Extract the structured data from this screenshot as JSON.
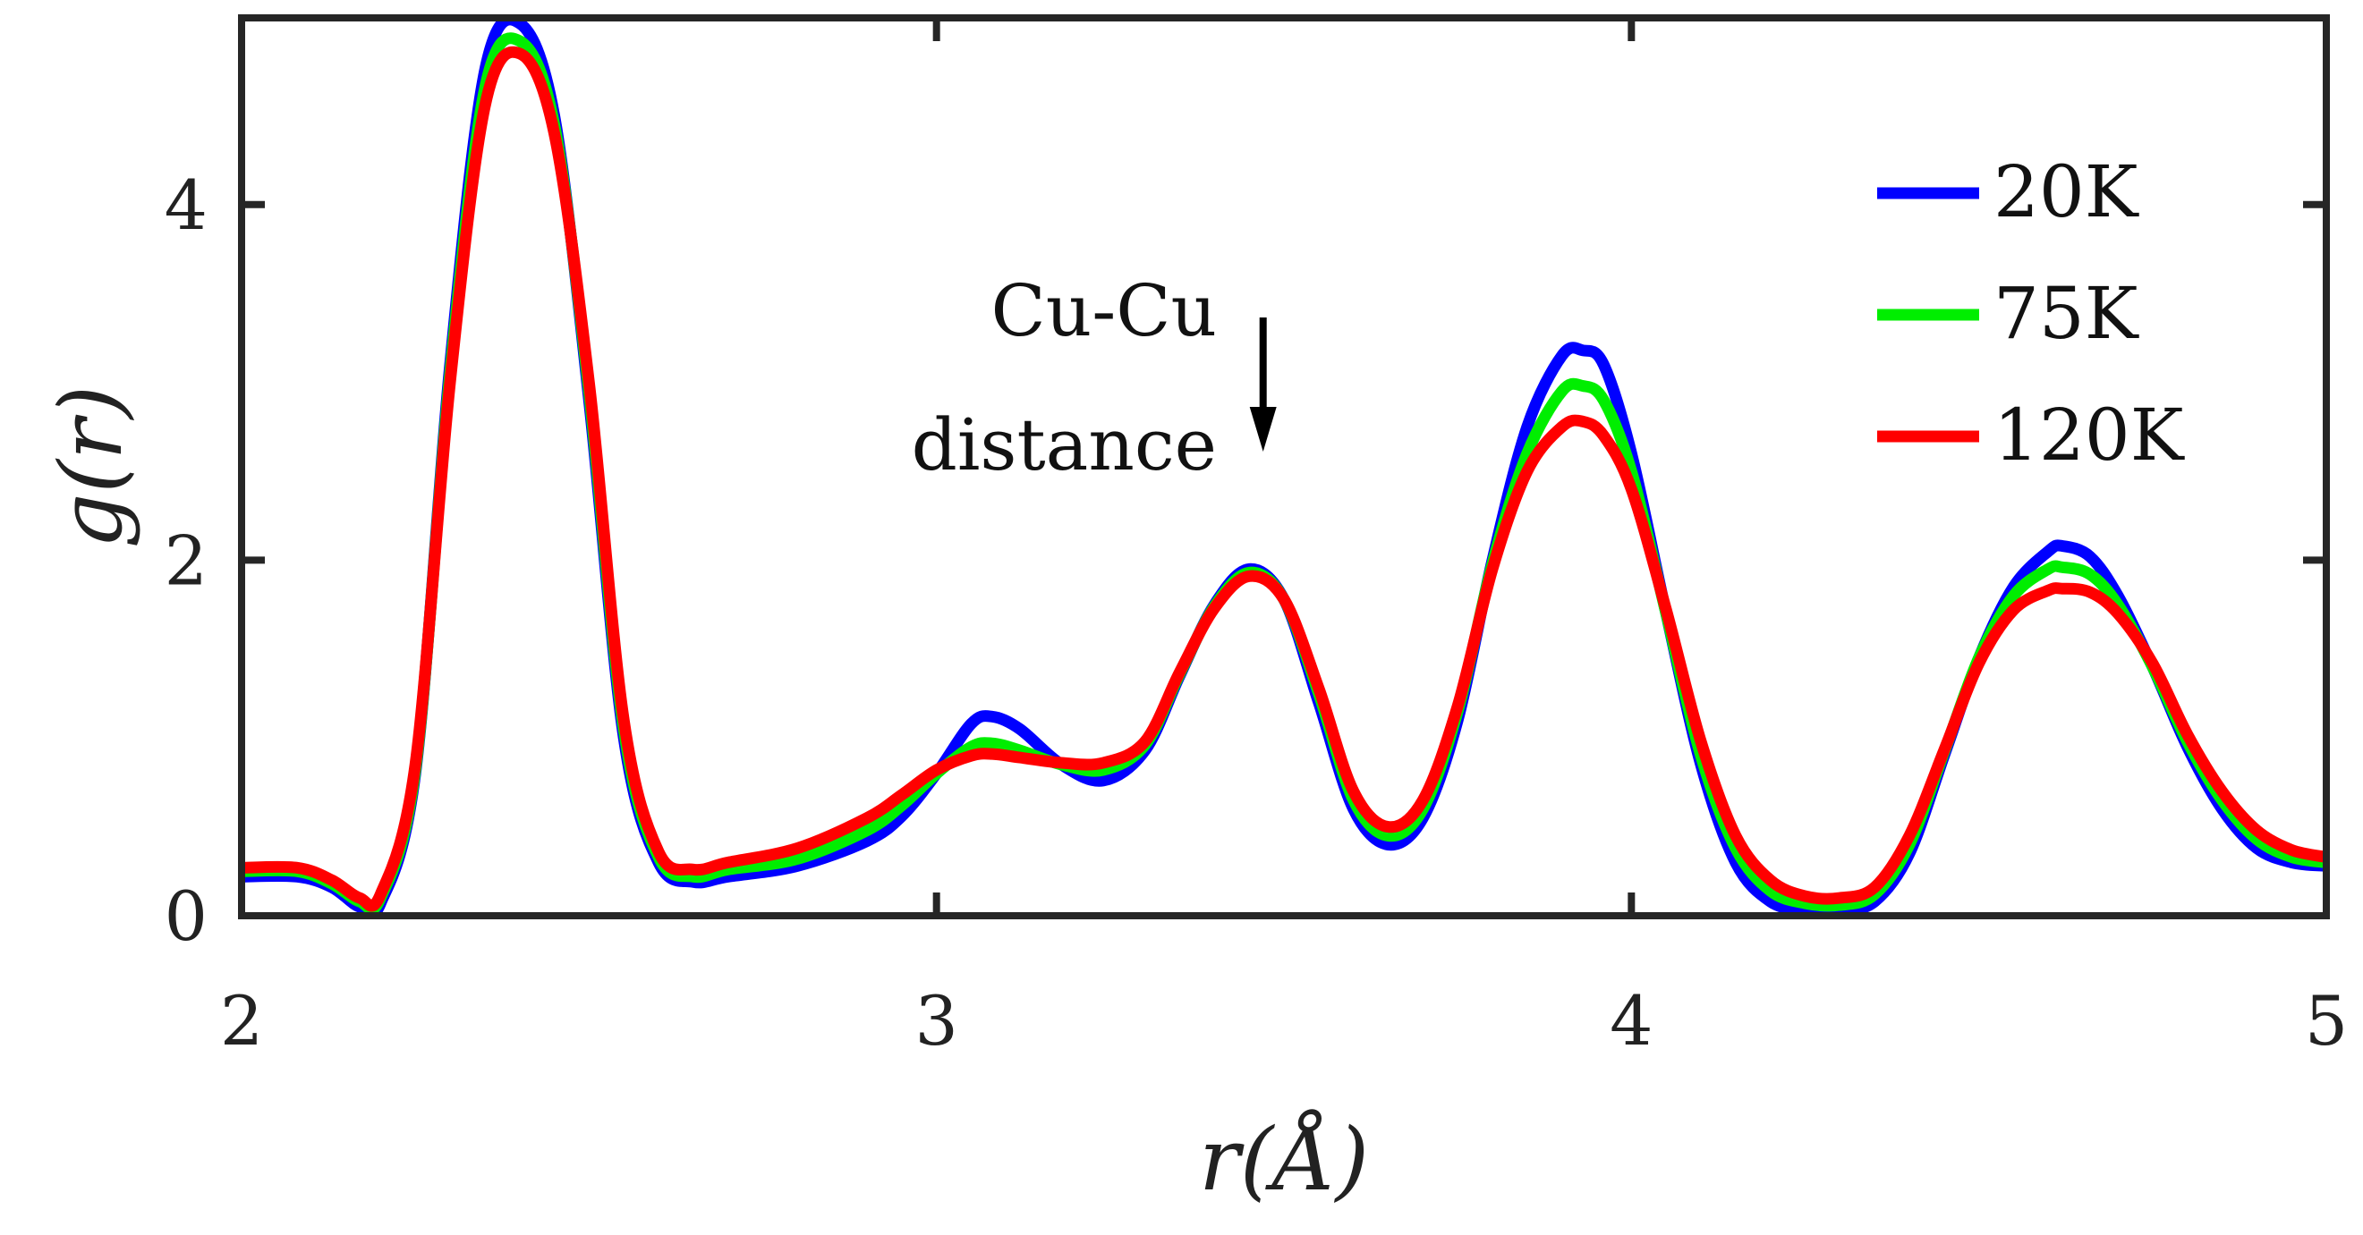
{
  "chart_data": {
    "type": "line",
    "title": "",
    "xlabel": "r(Å)",
    "ylabel": "g(r)",
    "xlim": [
      2,
      5
    ],
    "ylim": [
      0,
      5.05
    ],
    "xticks": [
      "2",
      "3",
      "4",
      "5"
    ],
    "yticks": [
      "0",
      "2",
      "4"
    ],
    "grid": false,
    "legend_position": "top-right",
    "annotation": {
      "line1": "Cu-Cu",
      "line2": "distance",
      "arrow_x": 3.47
    },
    "series": [
      {
        "name": "20K",
        "color": "#0000ff",
        "points": [
          [
            2.0,
            0.22
          ],
          [
            2.08,
            0.22
          ],
          [
            2.13,
            0.16
          ],
          [
            2.17,
            0.05
          ],
          [
            2.2,
            0.07
          ],
          [
            2.25,
            0.8
          ],
          [
            2.3,
            3.1
          ],
          [
            2.35,
            4.75
          ],
          [
            2.4,
            5.02
          ],
          [
            2.45,
            4.5
          ],
          [
            2.5,
            2.9
          ],
          [
            2.55,
            1.0
          ],
          [
            2.6,
            0.3
          ],
          [
            2.65,
            0.19
          ],
          [
            2.7,
            0.22
          ],
          [
            2.8,
            0.28
          ],
          [
            2.9,
            0.42
          ],
          [
            2.95,
            0.56
          ],
          [
            3.0,
            0.8
          ],
          [
            3.05,
            1.08
          ],
          [
            3.08,
            1.12
          ],
          [
            3.12,
            1.05
          ],
          [
            3.18,
            0.85
          ],
          [
            3.24,
            0.76
          ],
          [
            3.3,
            0.93
          ],
          [
            3.35,
            1.35
          ],
          [
            3.4,
            1.75
          ],
          [
            3.45,
            1.95
          ],
          [
            3.5,
            1.78
          ],
          [
            3.55,
            1.2
          ],
          [
            3.6,
            0.6
          ],
          [
            3.65,
            0.4
          ],
          [
            3.7,
            0.55
          ],
          [
            3.75,
            1.1
          ],
          [
            3.8,
            2.0
          ],
          [
            3.85,
            2.75
          ],
          [
            3.9,
            3.15
          ],
          [
            3.93,
            3.18
          ],
          [
            3.96,
            3.1
          ],
          [
            4.0,
            2.6
          ],
          [
            4.05,
            1.7
          ],
          [
            4.1,
            0.85
          ],
          [
            4.15,
            0.3
          ],
          [
            4.2,
            0.08
          ],
          [
            4.25,
            0.03
          ],
          [
            4.3,
            0.03
          ],
          [
            4.35,
            0.08
          ],
          [
            4.4,
            0.35
          ],
          [
            4.45,
            0.9
          ],
          [
            4.5,
            1.45
          ],
          [
            4.55,
            1.85
          ],
          [
            4.6,
            2.05
          ],
          [
            4.62,
            2.08
          ],
          [
            4.66,
            2.02
          ],
          [
            4.7,
            1.8
          ],
          [
            4.75,
            1.4
          ],
          [
            4.8,
            0.95
          ],
          [
            4.85,
            0.6
          ],
          [
            4.9,
            0.38
          ],
          [
            4.95,
            0.3
          ],
          [
            5.0,
            0.28
          ]
        ]
      },
      {
        "name": "75K",
        "color": "#00ee00",
        "points": [
          [
            2.0,
            0.25
          ],
          [
            2.08,
            0.25
          ],
          [
            2.13,
            0.18
          ],
          [
            2.17,
            0.08
          ],
          [
            2.2,
            0.1
          ],
          [
            2.25,
            0.82
          ],
          [
            2.3,
            3.05
          ],
          [
            2.35,
            4.65
          ],
          [
            2.4,
            4.92
          ],
          [
            2.45,
            4.45
          ],
          [
            2.5,
            2.95
          ],
          [
            2.55,
            1.05
          ],
          [
            2.6,
            0.33
          ],
          [
            2.65,
            0.22
          ],
          [
            2.7,
            0.26
          ],
          [
            2.8,
            0.32
          ],
          [
            2.9,
            0.48
          ],
          [
            2.95,
            0.62
          ],
          [
            3.0,
            0.8
          ],
          [
            3.05,
            0.95
          ],
          [
            3.08,
            0.97
          ],
          [
            3.12,
            0.93
          ],
          [
            3.18,
            0.85
          ],
          [
            3.24,
            0.82
          ],
          [
            3.3,
            0.96
          ],
          [
            3.35,
            1.36
          ],
          [
            3.4,
            1.74
          ],
          [
            3.45,
            1.93
          ],
          [
            3.5,
            1.78
          ],
          [
            3.55,
            1.25
          ],
          [
            3.6,
            0.65
          ],
          [
            3.65,
            0.45
          ],
          [
            3.7,
            0.6
          ],
          [
            3.75,
            1.15
          ],
          [
            3.8,
            1.98
          ],
          [
            3.85,
            2.6
          ],
          [
            3.9,
            2.95
          ],
          [
            3.93,
            2.98
          ],
          [
            3.96,
            2.9
          ],
          [
            4.0,
            2.5
          ],
          [
            4.05,
            1.7
          ],
          [
            4.1,
            0.9
          ],
          [
            4.15,
            0.38
          ],
          [
            4.2,
            0.14
          ],
          [
            4.25,
            0.07
          ],
          [
            4.3,
            0.06
          ],
          [
            4.35,
            0.12
          ],
          [
            4.4,
            0.4
          ],
          [
            4.45,
            0.92
          ],
          [
            4.5,
            1.45
          ],
          [
            4.55,
            1.8
          ],
          [
            4.6,
            1.95
          ],
          [
            4.62,
            1.96
          ],
          [
            4.66,
            1.92
          ],
          [
            4.7,
            1.75
          ],
          [
            4.75,
            1.4
          ],
          [
            4.8,
            0.98
          ],
          [
            4.85,
            0.65
          ],
          [
            4.9,
            0.43
          ],
          [
            4.95,
            0.33
          ],
          [
            5.0,
            0.3
          ]
        ]
      },
      {
        "name": "120K",
        "color": "#ff0000",
        "points": [
          [
            2.0,
            0.27
          ],
          [
            2.08,
            0.27
          ],
          [
            2.13,
            0.2
          ],
          [
            2.17,
            0.1
          ],
          [
            2.2,
            0.12
          ],
          [
            2.25,
            0.85
          ],
          [
            2.3,
            3.0
          ],
          [
            2.35,
            4.55
          ],
          [
            2.4,
            4.85
          ],
          [
            2.45,
            4.4
          ],
          [
            2.5,
            3.0
          ],
          [
            2.55,
            1.1
          ],
          [
            2.6,
            0.36
          ],
          [
            2.65,
            0.26
          ],
          [
            2.7,
            0.3
          ],
          [
            2.8,
            0.38
          ],
          [
            2.9,
            0.55
          ],
          [
            2.95,
            0.68
          ],
          [
            3.0,
            0.82
          ],
          [
            3.05,
            0.9
          ],
          [
            3.08,
            0.91
          ],
          [
            3.12,
            0.89
          ],
          [
            3.18,
            0.86
          ],
          [
            3.24,
            0.86
          ],
          [
            3.3,
            0.98
          ],
          [
            3.35,
            1.37
          ],
          [
            3.4,
            1.73
          ],
          [
            3.45,
            1.91
          ],
          [
            3.5,
            1.78
          ],
          [
            3.55,
            1.28
          ],
          [
            3.6,
            0.7
          ],
          [
            3.65,
            0.5
          ],
          [
            3.7,
            0.65
          ],
          [
            3.75,
            1.18
          ],
          [
            3.8,
            1.95
          ],
          [
            3.85,
            2.5
          ],
          [
            3.9,
            2.75
          ],
          [
            3.93,
            2.78
          ],
          [
            3.96,
            2.7
          ],
          [
            4.0,
            2.4
          ],
          [
            4.05,
            1.72
          ],
          [
            4.1,
            0.98
          ],
          [
            4.15,
            0.45
          ],
          [
            4.2,
            0.2
          ],
          [
            4.25,
            0.11
          ],
          [
            4.3,
            0.1
          ],
          [
            4.35,
            0.16
          ],
          [
            4.4,
            0.45
          ],
          [
            4.45,
            0.93
          ],
          [
            4.5,
            1.42
          ],
          [
            4.55,
            1.72
          ],
          [
            4.6,
            1.83
          ],
          [
            4.62,
            1.84
          ],
          [
            4.66,
            1.82
          ],
          [
            4.7,
            1.7
          ],
          [
            4.75,
            1.42
          ],
          [
            4.8,
            1.02
          ],
          [
            4.85,
            0.7
          ],
          [
            4.9,
            0.48
          ],
          [
            4.95,
            0.37
          ],
          [
            5.0,
            0.33
          ]
        ]
      }
    ]
  }
}
